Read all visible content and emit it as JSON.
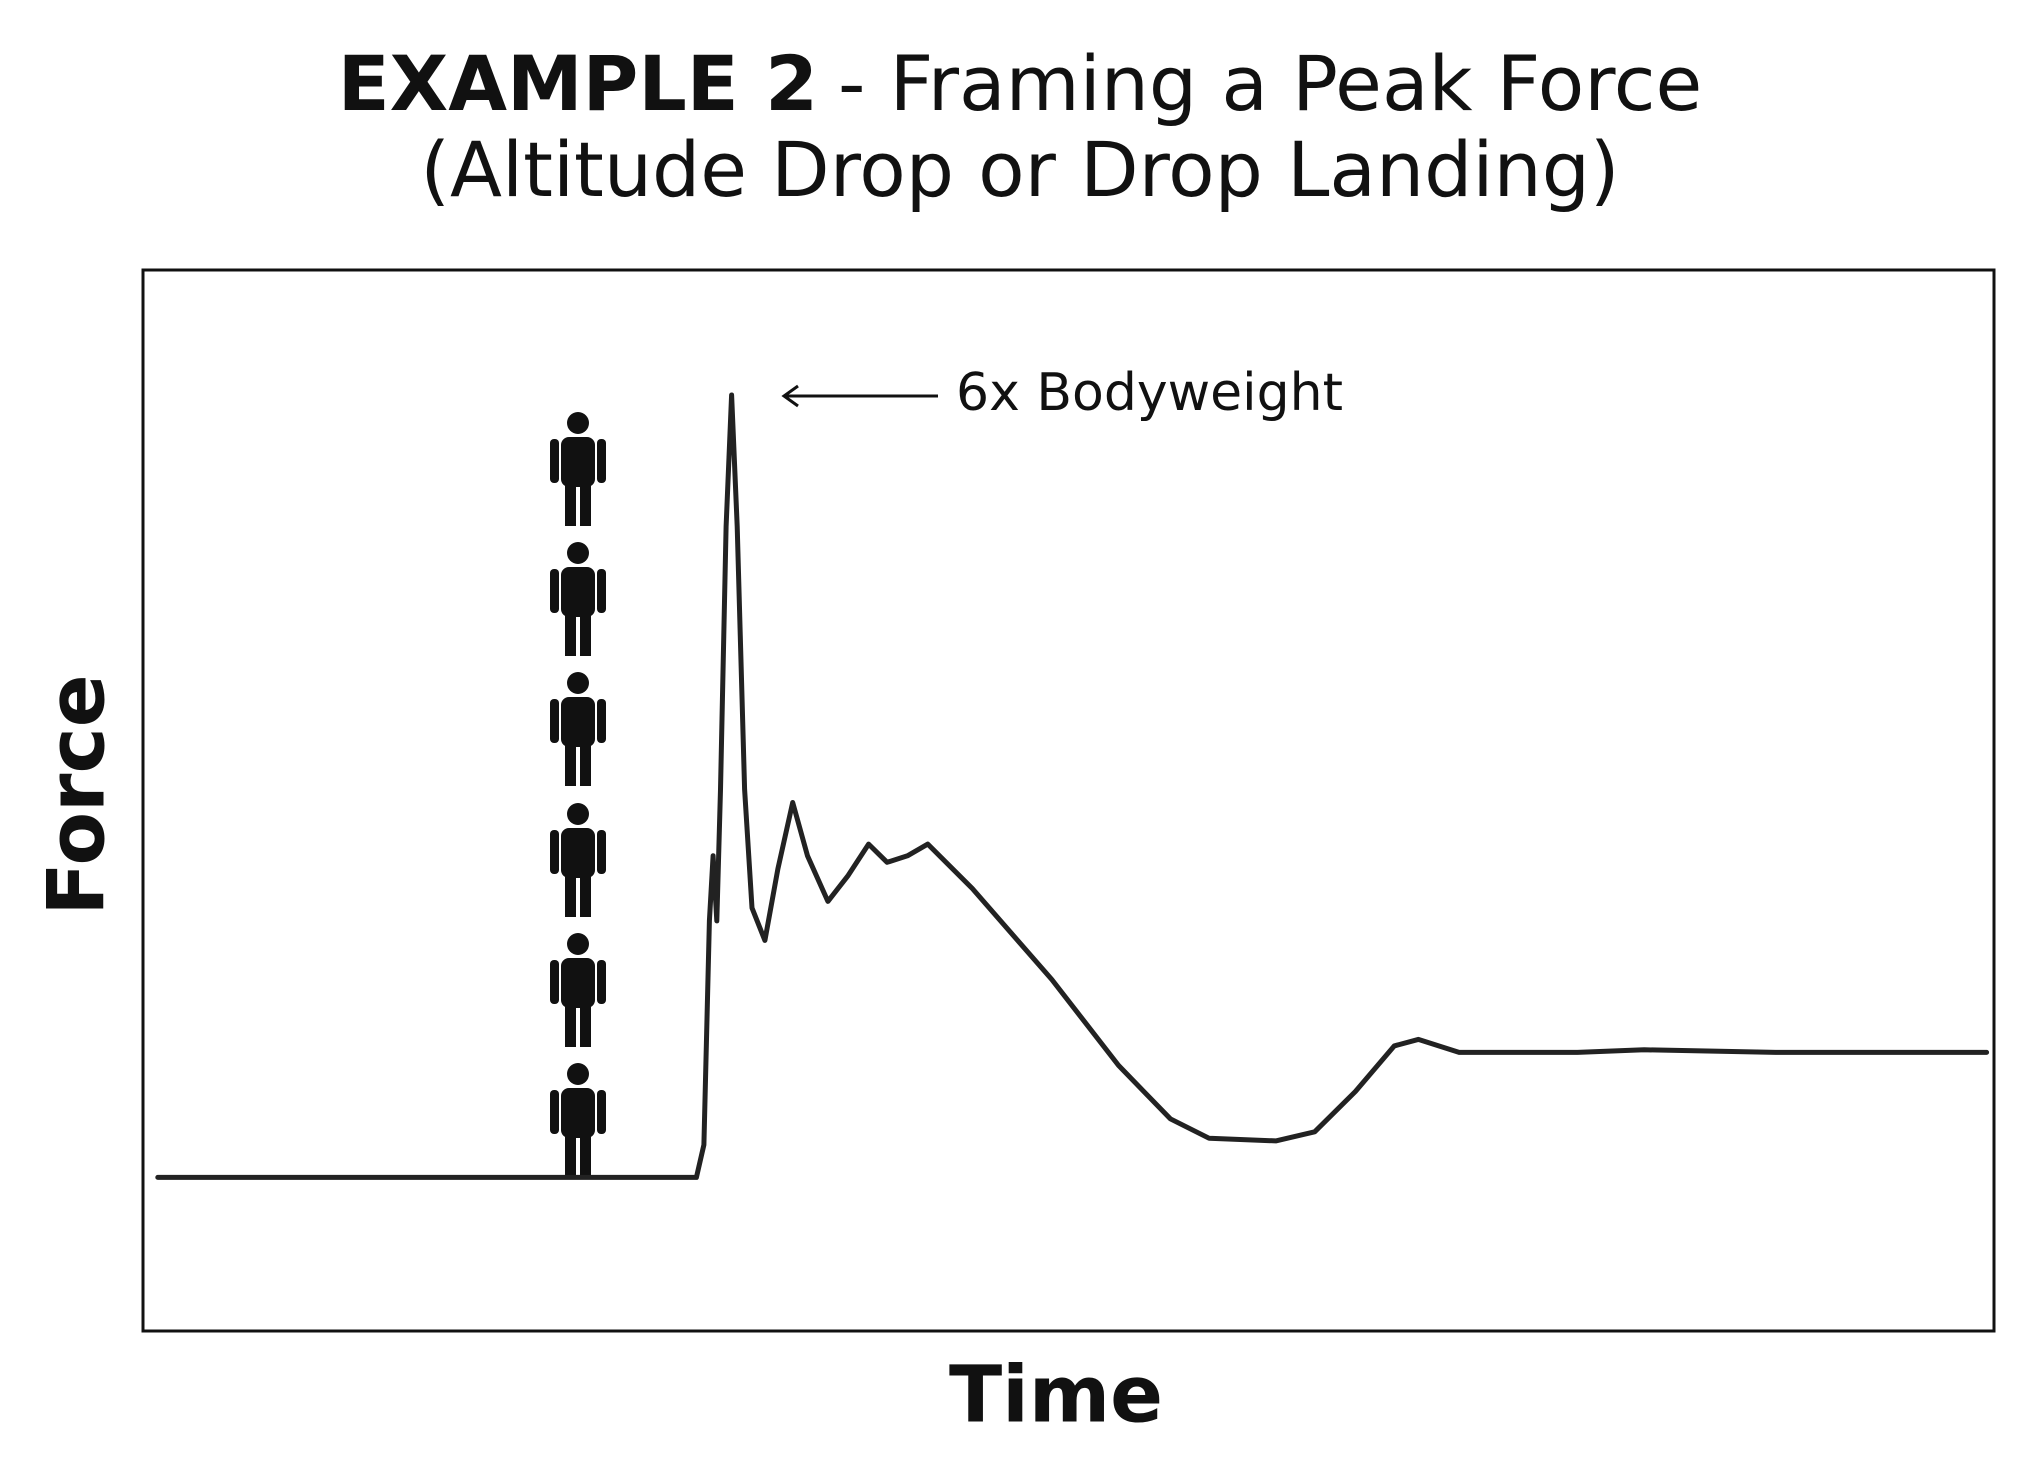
{
  "chart_data": {
    "type": "line",
    "title": {
      "lead": "EXAMPLE 2",
      "rest": "- Framing a Peak Force"
    },
    "subtitle": "(Altitude Drop or Drop Landing)",
    "x_label": "Time",
    "y_label": "Force",
    "annotation": "6x Bodyweight",
    "color": "#222222",
    "xlim": [
      0,
      100
    ],
    "ylim": [
      -1.18,
      6.97
    ],
    "x": [
      0.8,
      29.9,
      30.3,
      30.6,
      30.8,
      31.0,
      31.2,
      31.5,
      31.8,
      32.1,
      32.5,
      32.9,
      33.6,
      34.3,
      35.1,
      35.9,
      37.0,
      38.1,
      39.2,
      40.2,
      41.3,
      42.4,
      44.8,
      49.1,
      52.7,
      55.5,
      57.6,
      61.2,
      63.3,
      65.5,
      67.6,
      68.9,
      71.1,
      77.5,
      81.1,
      88.2,
      99.6
    ],
    "values": [
      0,
      0,
      0.25,
      1.97,
      2.47,
      1.97,
      2.98,
      5.0,
      6.01,
      5.0,
      2.98,
      2.07,
      1.82,
      2.37,
      2.88,
      2.47,
      2.12,
      2.32,
      2.56,
      2.42,
      2.47,
      2.56,
      2.22,
      1.52,
      0.86,
      0.45,
      0.3,
      0.28,
      0.35,
      0.66,
      1.01,
      1.06,
      0.96,
      0.96,
      0.98,
      0.96,
      0.96
    ]
  }
}
